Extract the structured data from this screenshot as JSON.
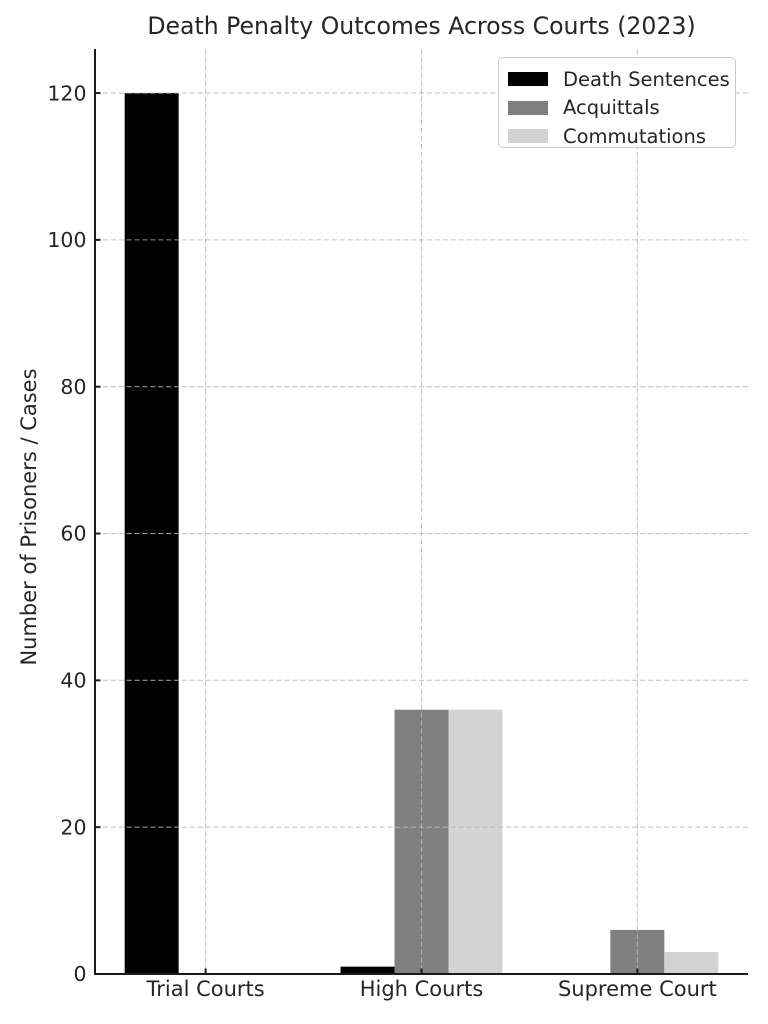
{
  "chart_data": {
    "type": "bar",
    "title": "Death Penalty Outcomes Across Courts (2023)",
    "categories": [
      "Trial Courts",
      "High Courts",
      "Supreme Court"
    ],
    "series": [
      {
        "name": "Death Sentences",
        "color": "#000000",
        "values": [
          120,
          1,
          0
        ]
      },
      {
        "name": "Acquittals",
        "color": "#808080",
        "values": [
          0,
          36,
          6
        ]
      },
      {
        "name": "Commutations",
        "color": "#d3d3d3",
        "values": [
          0,
          36,
          3
        ]
      }
    ],
    "xlabel": "",
    "ylabel": "Number of Prisoners / Cases",
    "ylim": [
      0,
      126
    ],
    "yticks": [
      0,
      20,
      40,
      60,
      80,
      100,
      120
    ],
    "bar_width": 0.25,
    "grid": {
      "visible": true,
      "style": "dashed",
      "axis": "both",
      "above_bars": true
    },
    "legend": {
      "visible": true,
      "position": "upper right"
    }
  },
  "colors": {
    "background": "#ffffff",
    "grid": "#b8b8b8",
    "spine": "#1a1a1a",
    "tick": "#1a1a1a",
    "text": "#262626",
    "legend_border": "#cccccc",
    "legend_background": "#ffffff"
  }
}
